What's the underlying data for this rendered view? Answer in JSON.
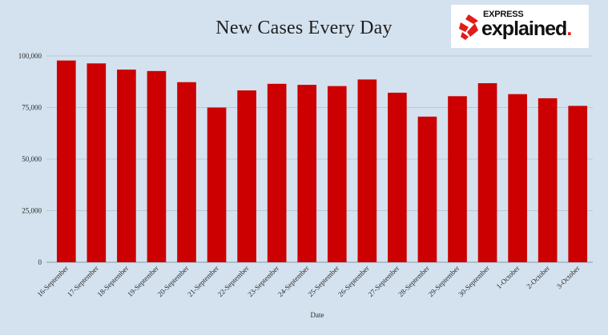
{
  "brand": {
    "line1": "EXPRESS",
    "line2": "explained",
    "line2_dot": ".",
    "accent": "#e21b1b"
  },
  "chart_data": {
    "type": "bar",
    "title": "New Cases Every Day",
    "xlabel": "Date",
    "ylabel": "",
    "categories": [
      "16-September",
      "17-September",
      "18-September",
      "19-September",
      "20-September",
      "21-September",
      "22-September",
      "23-September",
      "24-September",
      "25-September",
      "26-September",
      "27-September",
      "28-September",
      "29-September",
      "30-September",
      "1-October",
      "2-October",
      "3-October"
    ],
    "values": [
      97800,
      96400,
      93400,
      92700,
      87300,
      75000,
      83300,
      86500,
      86000,
      85400,
      88600,
      82200,
      70600,
      80500,
      86800,
      81500,
      79500,
      75800
    ],
    "ylim": [
      0,
      100000
    ],
    "yticks": [
      0,
      25000,
      50000,
      75000,
      100000
    ],
    "ytick_labels": [
      "0",
      "25,000",
      "50,000",
      "75,000",
      "100,000"
    ],
    "grid": true,
    "bar_color": "#cc0000",
    "grid_color": "#b9c8d6",
    "background": "#d4e2ef"
  }
}
